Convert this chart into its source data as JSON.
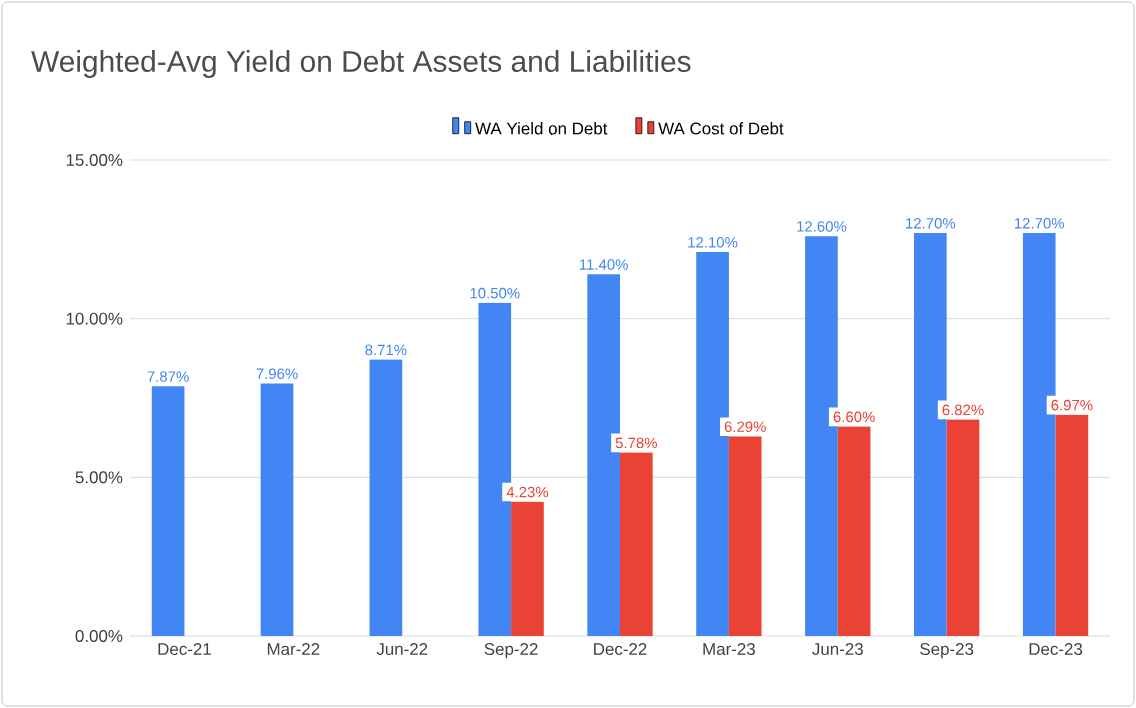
{
  "chart_data": {
    "type": "bar",
    "title": "Weighted-Avg Yield on Debt Assets and Liabilities",
    "categories": [
      "Dec-21",
      "Mar-22",
      "Jun-22",
      "Sep-22",
      "Dec-22",
      "Mar-23",
      "Jun-23",
      "Sep-23",
      "Dec-23"
    ],
    "series": [
      {
        "name": "WA Yield on Debt",
        "color": "#4285f4",
        "values": [
          7.87,
          7.96,
          8.71,
          10.5,
          11.4,
          12.1,
          12.6,
          12.7,
          12.7
        ],
        "value_labels": [
          "7.87%",
          "7.96%",
          "8.71%",
          "10.50%",
          "11.40%",
          "12.10%",
          "12.60%",
          "12.70%",
          "12.70%"
        ]
      },
      {
        "name": "WA Cost of Debt",
        "color": "#ea4335",
        "values": [
          null,
          null,
          null,
          4.23,
          5.78,
          6.29,
          6.6,
          6.82,
          6.97
        ],
        "value_labels": [
          null,
          null,
          null,
          "4.23%",
          "5.78%",
          "6.29%",
          "6.60%",
          "6.82%",
          "6.97%"
        ]
      }
    ],
    "ylim": [
      0,
      15
    ],
    "yticks": [
      {
        "value": 0,
        "label": "0.00%"
      },
      {
        "value": 5,
        "label": "5.00%"
      },
      {
        "value": 10,
        "label": "10.00%"
      },
      {
        "value": 15,
        "label": "15.00%"
      }
    ],
    "grid": "y",
    "legend": "top"
  }
}
